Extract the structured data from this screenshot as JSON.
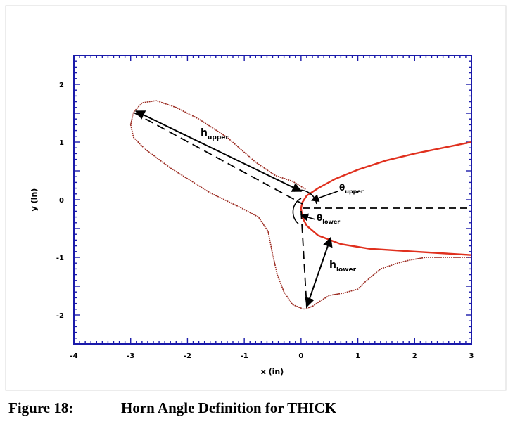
{
  "figure": {
    "number": "Figure 18:",
    "title": "Horn Angle Definition for THICK"
  },
  "chart_data": {
    "type": "line",
    "xlabel": "x (in)",
    "ylabel": "y (in)",
    "xlim": [
      -4,
      3
    ],
    "ylim": [
      -2.5,
      2.5
    ],
    "xticks": [
      "-4",
      "-3",
      "-2",
      "-1",
      "0",
      "1",
      "2",
      "3"
    ],
    "yticks": [
      "2",
      "1",
      "0",
      "-1",
      "-2"
    ],
    "annotations": {
      "h_upper": "h",
      "h_upper_sub": "upper",
      "h_lower": "h",
      "h_lower_sub": "lower",
      "theta_upper": "θ",
      "theta_upper_sub": "upper",
      "theta_lower": "θ",
      "theta_lower_sub": "lower"
    },
    "colors": {
      "axes": "#1a1aaa",
      "clean_airfoil": "#e0301e",
      "ice_shape": "#9b2a20",
      "annotation": "#000000"
    },
    "series": [
      {
        "values": [
          [
            3.0,
            1.0
          ],
          [
            2.5,
            0.9
          ],
          [
            2.0,
            0.8
          ],
          [
            1.5,
            0.68
          ],
          [
            1.0,
            0.52
          ],
          [
            0.6,
            0.36
          ],
          [
            0.3,
            0.2
          ],
          [
            0.1,
            0.07
          ],
          [
            0.02,
            -0.05
          ],
          [
            0.0,
            -0.15
          ],
          [
            0.02,
            -0.3
          ],
          [
            0.1,
            -0.45
          ],
          [
            0.3,
            -0.62
          ],
          [
            0.7,
            -0.77
          ],
          [
            1.2,
            -0.85
          ],
          [
            2.0,
            -0.9
          ],
          [
            3.0,
            -0.96
          ]
        ]
      },
      {
        "values": [
          [
            3.0,
            -1.0
          ],
          [
            2.2,
            -1.0
          ],
          [
            1.9,
            -1.05
          ],
          [
            1.7,
            -1.1
          ],
          [
            1.4,
            -1.2
          ],
          [
            1.1,
            -1.45
          ],
          [
            1.0,
            -1.55
          ],
          [
            0.75,
            -1.62
          ],
          [
            0.5,
            -1.66
          ],
          [
            0.35,
            -1.75
          ],
          [
            0.2,
            -1.85
          ],
          [
            0.05,
            -1.9
          ],
          [
            -0.15,
            -1.82
          ],
          [
            -0.3,
            -1.6
          ],
          [
            -0.42,
            -1.3
          ],
          [
            -0.5,
            -0.95
          ],
          [
            -0.58,
            -0.55
          ],
          [
            -0.75,
            -0.3
          ],
          [
            -1.1,
            -0.12
          ],
          [
            -1.6,
            0.12
          ],
          [
            -2.3,
            0.55
          ],
          [
            -2.75,
            0.88
          ],
          [
            -2.95,
            1.08
          ],
          [
            -3.0,
            1.3
          ],
          [
            -2.95,
            1.52
          ],
          [
            -2.8,
            1.68
          ],
          [
            -2.55,
            1.72
          ],
          [
            -2.2,
            1.6
          ],
          [
            -1.8,
            1.4
          ],
          [
            -1.3,
            1.08
          ],
          [
            -0.8,
            0.65
          ],
          [
            -0.45,
            0.42
          ],
          [
            -0.15,
            0.32
          ],
          [
            0.08,
            0.18
          ]
        ]
      }
    ]
  }
}
